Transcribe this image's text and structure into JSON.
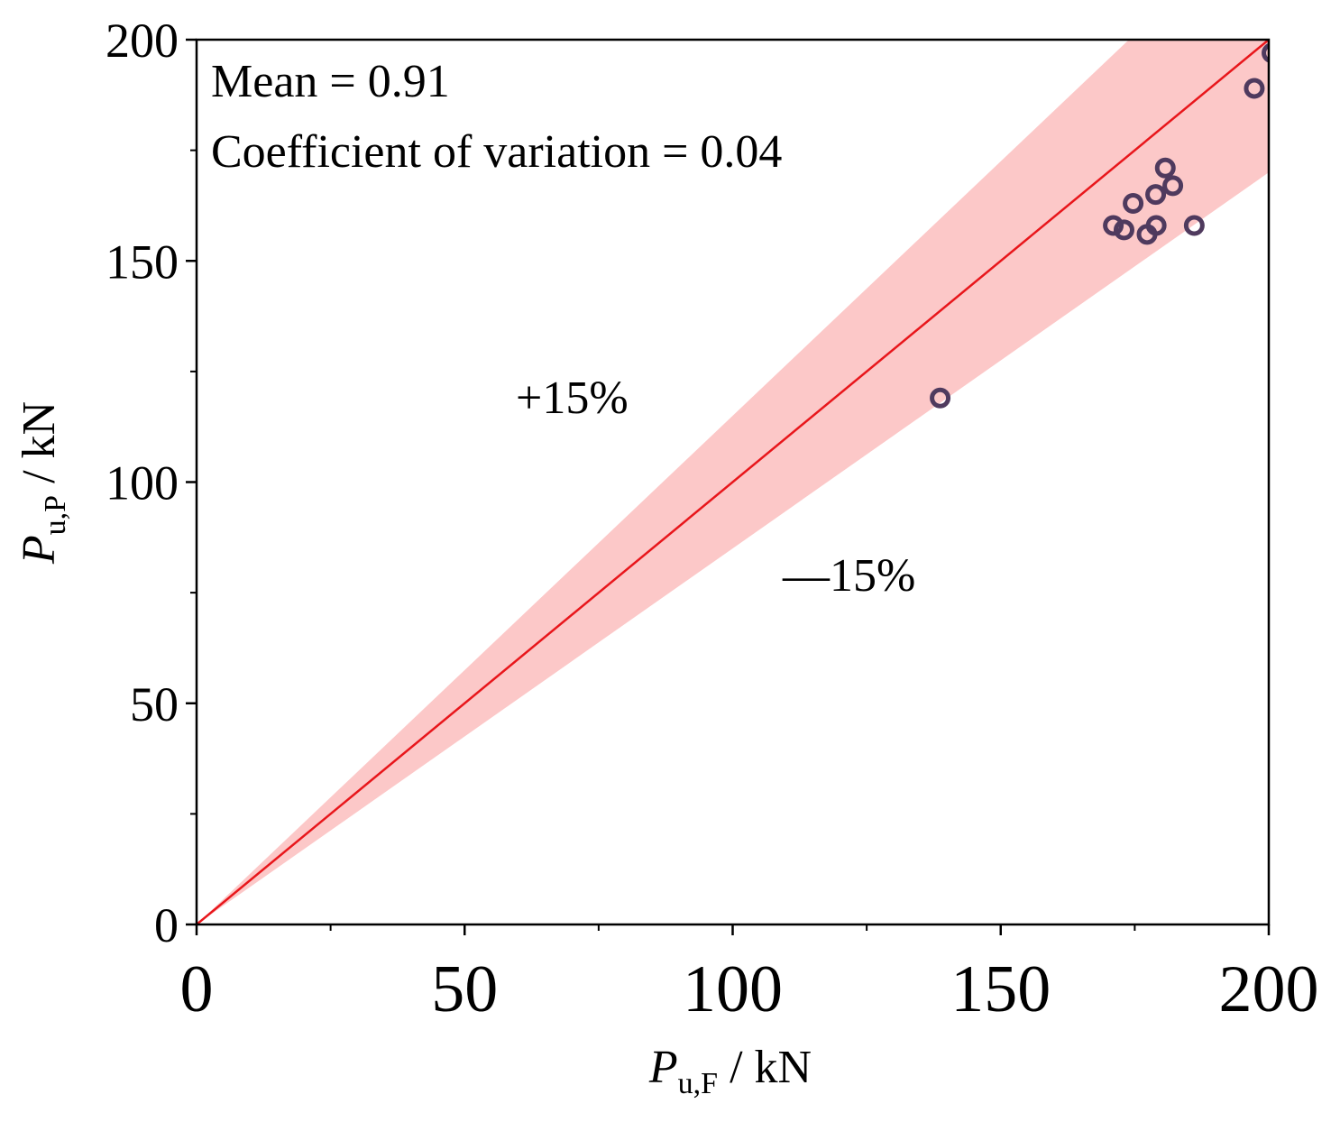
{
  "chart_data": {
    "type": "scatter",
    "title": "",
    "xlabel": {
      "symbol": "P",
      "sub": "u,F",
      "unit": " / kN"
    },
    "ylabel": {
      "symbol": "P",
      "sub": "u,P",
      "unit": " / kN"
    },
    "xlim": [
      0,
      200
    ],
    "ylim": [
      0,
      200
    ],
    "xticks": [
      "0",
      "50",
      "100",
      "150",
      "200"
    ],
    "yticks": [
      "0",
      "50",
      "100",
      "150",
      "200"
    ],
    "x_minor_ticks": [
      25,
      75,
      125,
      175
    ],
    "y_minor_ticks": [
      25,
      75,
      125,
      175
    ],
    "grid": false,
    "annotations": {
      "mean": "Mean = 0.91",
      "cov": "Coefficient of variation = 0.04",
      "upper_band": "+15%",
      "lower_band": "—15%"
    },
    "reference_line": {
      "slope": 1,
      "color": "#e8161b"
    },
    "band": {
      "upper_factor": 1.15,
      "lower_factor": 0.85,
      "color": "#fcc8c8"
    },
    "points": [
      {
        "x": 138.7,
        "y": 119.0
      },
      {
        "x": 171.0,
        "y": 158.0
      },
      {
        "x": 173.0,
        "y": 157.0
      },
      {
        "x": 174.7,
        "y": 163.0
      },
      {
        "x": 177.3,
        "y": 156.0
      },
      {
        "x": 178.9,
        "y": 165.0
      },
      {
        "x": 179.0,
        "y": 158.0
      },
      {
        "x": 180.7,
        "y": 171.0
      },
      {
        "x": 182.1,
        "y": 167.0
      },
      {
        "x": 186.1,
        "y": 158.0
      },
      {
        "x": 197.3,
        "y": 189.0
      },
      {
        "x": 200.6,
        "y": 197.0
      }
    ],
    "marker_color": "#4f3a5e"
  }
}
